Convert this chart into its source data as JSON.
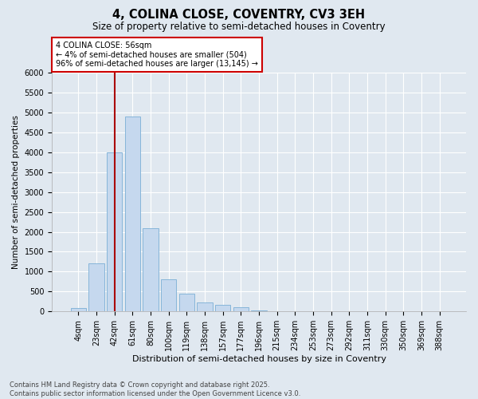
{
  "title_line1": "4, COLINA CLOSE, COVENTRY, CV3 3EH",
  "title_line2": "Size of property relative to semi-detached houses in Coventry",
  "xlabel": "Distribution of semi-detached houses by size in Coventry",
  "ylabel": "Number of semi-detached properties",
  "categories": [
    "4sqm",
    "23sqm",
    "42sqm",
    "61sqm",
    "80sqm",
    "100sqm",
    "119sqm",
    "138sqm",
    "157sqm",
    "177sqm",
    "196sqm",
    "215sqm",
    "234sqm",
    "253sqm",
    "273sqm",
    "292sqm",
    "311sqm",
    "330sqm",
    "350sqm",
    "369sqm",
    "388sqm"
  ],
  "values": [
    80,
    1200,
    4000,
    4900,
    2100,
    800,
    440,
    220,
    160,
    100,
    30,
    10,
    5,
    2,
    1,
    1,
    0,
    0,
    0,
    0,
    0
  ],
  "bar_color": "#c5d8ee",
  "bar_edgecolor": "#7aaed6",
  "vline_x": 2.0,
  "vline_color": "#aa0000",
  "annotation_text": "4 COLINA CLOSE: 56sqm\n← 4% of semi-detached houses are smaller (504)\n96% of semi-detached houses are larger (13,145) →",
  "annotation_box_edgecolor": "#cc0000",
  "ylim": [
    0,
    6000
  ],
  "yticks": [
    0,
    500,
    1000,
    1500,
    2000,
    2500,
    3000,
    3500,
    4000,
    4500,
    5000,
    5500,
    6000
  ],
  "fig_bg_color": "#e0e8f0",
  "plot_bg_color": "#e0e8f0",
  "grid_color": "#ffffff",
  "footnote": "Contains HM Land Registry data © Crown copyright and database right 2025.\nContains public sector information licensed under the Open Government Licence v3.0.",
  "title_fontsize": 10.5,
  "subtitle_fontsize": 8.5,
  "xlabel_fontsize": 8,
  "ylabel_fontsize": 7.5,
  "tick_fontsize": 7,
  "annot_fontsize": 7,
  "footnote_fontsize": 6
}
